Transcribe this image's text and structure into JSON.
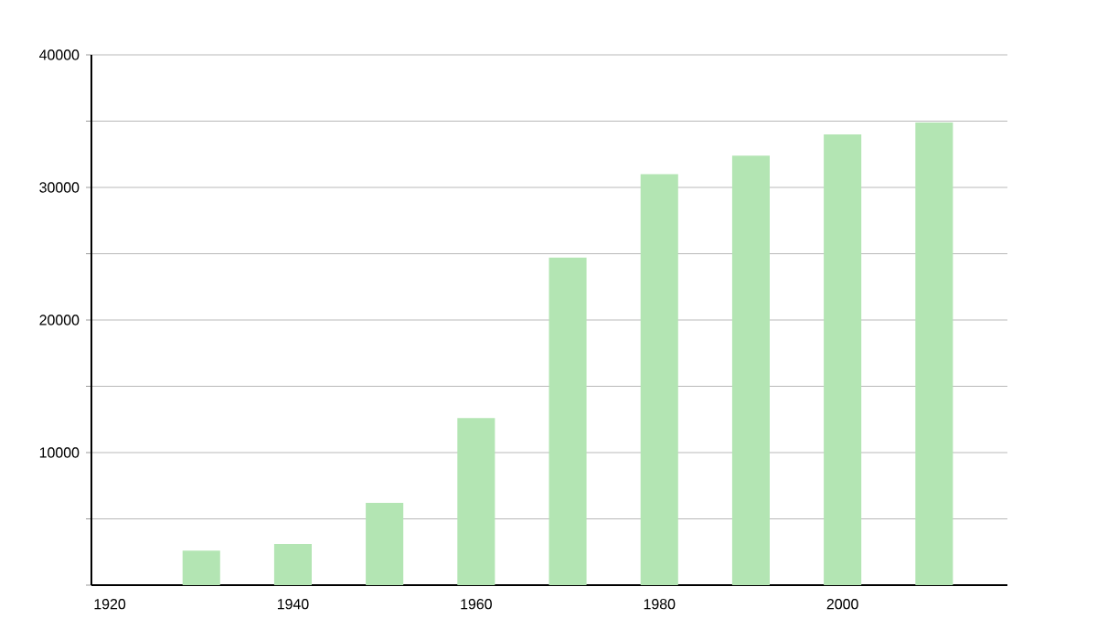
{
  "chart_data": {
    "type": "bar",
    "x": [
      1930,
      1940,
      1950,
      1960,
      1970,
      1980,
      1990,
      2000,
      2010
    ],
    "values": [
      2600,
      3100,
      6200,
      12600,
      24700,
      31000,
      32400,
      34000,
      34900
    ],
    "color": "#b3e5b3",
    "xlim": [
      1918,
      2018
    ],
    "xticks": [
      1920,
      1940,
      1960,
      1980,
      2000
    ],
    "ylim": [
      0,
      40000
    ],
    "yticks": [
      {
        "value": 0,
        "label": null
      },
      {
        "value": 5000,
        "label": null
      },
      10000,
      {
        "value": 15000,
        "label": null
      },
      20000,
      {
        "value": 25000,
        "label": null
      },
      30000,
      {
        "value": 35000,
        "label": null
      },
      40000
    ],
    "grid": "y"
  }
}
